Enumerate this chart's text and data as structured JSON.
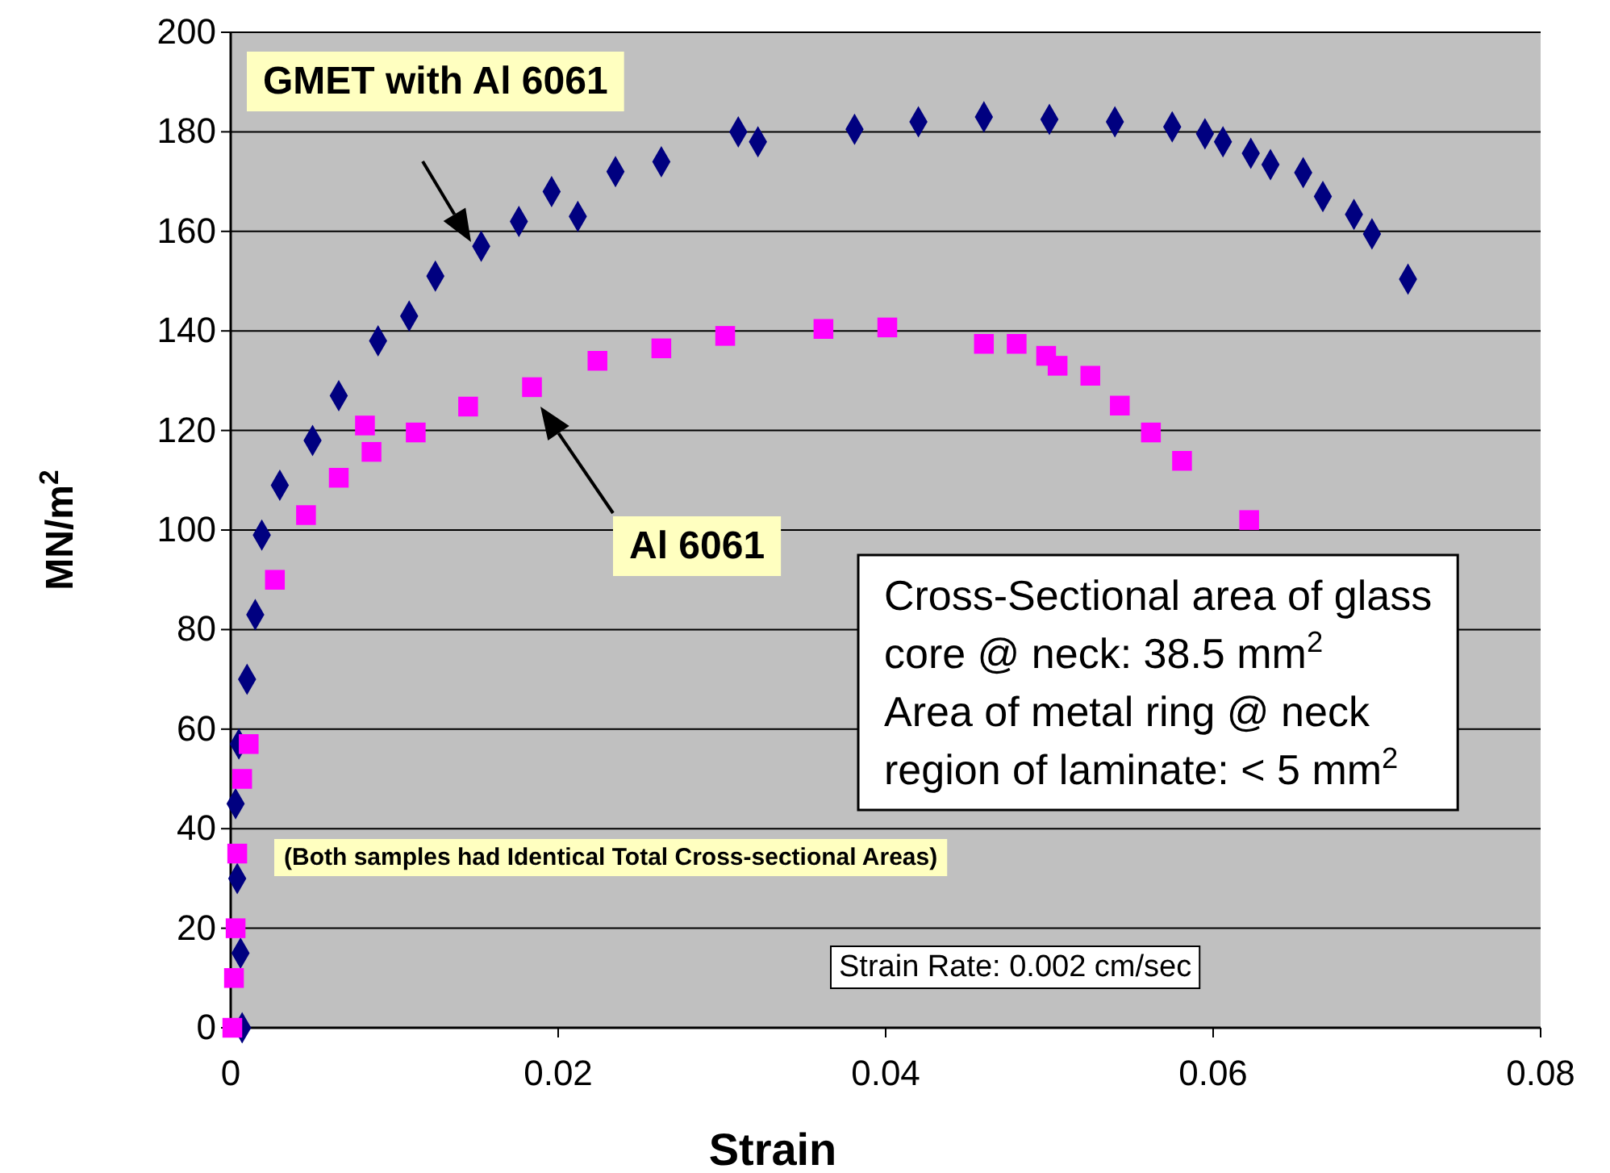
{
  "chart_data": {
    "type": "scatter",
    "xlabel": "Strain",
    "ylabel": "MN/m$^{2}$",
    "xlim": [
      0,
      0.08
    ],
    "xticks": [
      0,
      0.02,
      0.04,
      0.06,
      0.08
    ],
    "ylim": [
      0,
      200
    ],
    "yticks": [
      0,
      20,
      40,
      60,
      80,
      100,
      120,
      140,
      160,
      180,
      200
    ],
    "grid": "y",
    "series": [
      {
        "color": "#000080",
        "marker": "diamond",
        "x": [
          0.0007,
          0.0006,
          0.0004,
          0.0003,
          0.0005,
          0.001,
          0.0015,
          0.0019,
          0.003,
          0.005,
          0.0066,
          0.009,
          0.0109,
          0.0125,
          0.0153,
          0.0176,
          0.0196,
          0.0212,
          0.0235,
          0.0263,
          0.031,
          0.0322,
          0.0381,
          0.042,
          0.046,
          0.05,
          0.054,
          0.0575,
          0.0595,
          0.0606,
          0.0623,
          0.0635,
          0.0655,
          0.0667,
          0.0686,
          0.0697,
          0.0719
        ],
        "values": [
          0,
          15,
          30,
          45,
          57,
          70,
          83,
          99,
          109,
          118,
          127,
          138,
          143,
          151,
          157,
          162,
          168,
          163,
          172,
          174,
          180,
          178,
          180.5,
          182,
          183,
          182.5,
          182,
          181,
          179.6,
          178,
          175.7,
          173.4,
          171.8,
          167,
          163.4,
          159.5,
          150.4
        ]
      },
      {
        "color": "#ff00ff",
        "marker": "square",
        "x": [
          0.0001,
          0.0002,
          0.0003,
          0.0004,
          0.0007,
          0.0011,
          0.0027,
          0.0046,
          0.0066,
          0.0082,
          0.0086,
          0.0113,
          0.0145,
          0.0184,
          0.0224,
          0.0263,
          0.0302,
          0.0362,
          0.0401,
          0.046,
          0.048,
          0.0498,
          0.0505,
          0.0525,
          0.0543,
          0.0562,
          0.0581,
          0.0622
        ],
        "values": [
          0,
          10,
          20,
          35,
          50,
          57,
          90,
          103,
          110.5,
          121,
          115.7,
          119.6,
          124.8,
          128.7,
          134,
          136.5,
          139,
          140.4,
          140.7,
          137.4,
          137.4,
          135,
          133,
          131,
          125,
          119.6,
          113.9,
          102
        ]
      }
    ],
    "annotations": [
      "GMET with Al 6061",
      "Al 6061",
      "Cross-Sectional area of glass",
      "core @ neck: 38.5 mm$^{2}$",
      "Area of metal ring @ neck",
      "region of laminate: < 5 mm$^{2}$",
      "(Both samples had Identical Total Cross-sectional Areas)",
      "Strain Rate: 0.002 cm/sec"
    ]
  }
}
